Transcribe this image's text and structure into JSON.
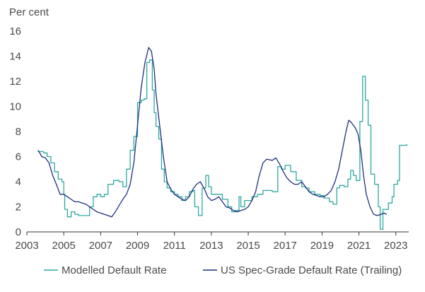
{
  "chart_data": {
    "type": "line",
    "ylabel": "Per cent",
    "ylim": [
      0,
      16
    ],
    "xlim": [
      2003,
      2023.7
    ],
    "yticks": [
      "0",
      "2",
      "4",
      "6",
      "8",
      "10",
      "12",
      "14",
      "16"
    ],
    "xticks": [
      "2003",
      "2005",
      "2007",
      "2009",
      "2011",
      "2013",
      "2015",
      "2017",
      "2019",
      "2021",
      "2023"
    ],
    "grid": false,
    "legend_position": "bottom",
    "series": [
      {
        "name": "Modelled Default Rate",
        "color": "#2ea8a0",
        "step": true,
        "points": [
          [
            2003.6,
            6.4
          ],
          [
            2003.9,
            6.3
          ],
          [
            2004.1,
            6.0
          ],
          [
            2004.3,
            5.5
          ],
          [
            2004.5,
            4.8
          ],
          [
            2004.7,
            4.2
          ],
          [
            2004.9,
            4.0
          ],
          [
            2005.0,
            3.0
          ],
          [
            2005.05,
            1.8
          ],
          [
            2005.2,
            1.2
          ],
          [
            2005.4,
            1.6
          ],
          [
            2005.6,
            1.4
          ],
          [
            2005.8,
            1.3
          ],
          [
            2006.1,
            1.3
          ],
          [
            2006.4,
            2.0
          ],
          [
            2006.6,
            2.8
          ],
          [
            2006.8,
            3.0
          ],
          [
            2007.0,
            2.8
          ],
          [
            2007.2,
            3.0
          ],
          [
            2007.4,
            3.8
          ],
          [
            2007.7,
            4.1
          ],
          [
            2008.0,
            4.0
          ],
          [
            2008.2,
            3.6
          ],
          [
            2008.4,
            5.0
          ],
          [
            2008.6,
            6.5
          ],
          [
            2008.8,
            7.6
          ],
          [
            2009.0,
            10.3
          ],
          [
            2009.2,
            10.5
          ],
          [
            2009.35,
            10.6
          ],
          [
            2009.5,
            13.5
          ],
          [
            2009.65,
            13.7
          ],
          [
            2009.8,
            11.3
          ],
          [
            2009.9,
            9.5
          ],
          [
            2010.0,
            8.4
          ],
          [
            2010.15,
            7.4
          ],
          [
            2010.3,
            5.0
          ],
          [
            2010.45,
            4.0
          ],
          [
            2010.6,
            3.5
          ],
          [
            2010.8,
            3.2
          ],
          [
            2011.0,
            3.0
          ],
          [
            2011.2,
            2.8
          ],
          [
            2011.4,
            2.5
          ],
          [
            2011.6,
            2.8
          ],
          [
            2011.8,
            3.2
          ],
          [
            2012.0,
            3.3
          ],
          [
            2012.1,
            2.0
          ],
          [
            2012.3,
            1.3
          ],
          [
            2012.5,
            3.5
          ],
          [
            2012.7,
            4.5
          ],
          [
            2012.85,
            3.6
          ],
          [
            2013.0,
            3.0
          ],
          [
            2013.3,
            3.0
          ],
          [
            2013.6,
            2.6
          ],
          [
            2013.9,
            2.0
          ],
          [
            2014.1,
            1.6
          ],
          [
            2014.3,
            1.7
          ],
          [
            2014.5,
            2.8
          ],
          [
            2014.6,
            2.0
          ],
          [
            2014.8,
            2.5
          ],
          [
            2015.2,
            2.8
          ],
          [
            2015.5,
            3.0
          ],
          [
            2015.8,
            3.3
          ],
          [
            2016.0,
            3.3
          ],
          [
            2016.3,
            3.2
          ],
          [
            2016.6,
            5.2
          ],
          [
            2016.8,
            5.0
          ],
          [
            2017.0,
            5.3
          ],
          [
            2017.3,
            4.8
          ],
          [
            2017.6,
            4.1
          ],
          [
            2017.9,
            3.6
          ],
          [
            2018.1,
            3.5
          ],
          [
            2018.3,
            3.2
          ],
          [
            2018.6,
            3.0
          ],
          [
            2018.9,
            2.9
          ],
          [
            2019.1,
            2.7
          ],
          [
            2019.4,
            2.4
          ],
          [
            2019.6,
            2.2
          ],
          [
            2019.8,
            3.5
          ],
          [
            2019.95,
            3.7
          ],
          [
            2020.2,
            3.6
          ],
          [
            2020.4,
            4.2
          ],
          [
            2020.55,
            4.9
          ],
          [
            2020.7,
            4.5
          ],
          [
            2020.85,
            4.1
          ],
          [
            2021.05,
            8.8
          ],
          [
            2021.2,
            12.4
          ],
          [
            2021.35,
            10.5
          ],
          [
            2021.5,
            8.5
          ],
          [
            2021.65,
            4.6
          ],
          [
            2021.85,
            3.8
          ],
          [
            2022.05,
            2.0
          ],
          [
            2022.15,
            0.2
          ],
          [
            2022.3,
            1.8
          ],
          [
            2022.6,
            2.3
          ],
          [
            2022.8,
            2.8
          ],
          [
            2022.9,
            3.8
          ],
          [
            2023.1,
            4.1
          ],
          [
            2023.2,
            6.9
          ],
          [
            2023.6,
            7.0
          ]
        ]
      },
      {
        "name": "US Spec-Grade Default Rate (Trailing)",
        "color": "#1f2f80",
        "step": false,
        "points": [
          [
            2003.6,
            6.5
          ],
          [
            2003.7,
            6.3
          ],
          [
            2003.8,
            6.0
          ],
          [
            2004.0,
            5.9
          ],
          [
            2004.2,
            5.5
          ],
          [
            2004.4,
            4.5
          ],
          [
            2004.6,
            3.8
          ],
          [
            2004.8,
            3.0
          ],
          [
            2005.0,
            3.0
          ],
          [
            2005.2,
            2.8
          ],
          [
            2005.4,
            2.6
          ],
          [
            2005.6,
            2.4
          ],
          [
            2005.8,
            2.4
          ],
          [
            2006.0,
            2.3
          ],
          [
            2006.2,
            2.2
          ],
          [
            2006.4,
            2.0
          ],
          [
            2006.6,
            1.8
          ],
          [
            2006.8,
            1.6
          ],
          [
            2007.0,
            1.5
          ],
          [
            2007.2,
            1.4
          ],
          [
            2007.4,
            1.3
          ],
          [
            2007.6,
            1.2
          ],
          [
            2007.8,
            1.6
          ],
          [
            2008.0,
            2.1
          ],
          [
            2008.2,
            2.6
          ],
          [
            2008.4,
            3.0
          ],
          [
            2008.6,
            3.8
          ],
          [
            2008.8,
            5.5
          ],
          [
            2009.0,
            8.5
          ],
          [
            2009.2,
            11.5
          ],
          [
            2009.4,
            13.5
          ],
          [
            2009.6,
            14.7
          ],
          [
            2009.75,
            14.4
          ],
          [
            2009.9,
            13.0
          ],
          [
            2010.0,
            11.0
          ],
          [
            2010.2,
            8.5
          ],
          [
            2010.4,
            6.0
          ],
          [
            2010.6,
            4.0
          ],
          [
            2010.8,
            3.4
          ],
          [
            2011.0,
            3.0
          ],
          [
            2011.2,
            2.8
          ],
          [
            2011.4,
            2.6
          ],
          [
            2011.6,
            2.5
          ],
          [
            2011.8,
            2.8
          ],
          [
            2012.0,
            3.4
          ],
          [
            2012.2,
            3.8
          ],
          [
            2012.4,
            4.0
          ],
          [
            2012.6,
            3.5
          ],
          [
            2012.8,
            2.8
          ],
          [
            2013.0,
            2.5
          ],
          [
            2013.2,
            2.6
          ],
          [
            2013.4,
            2.8
          ],
          [
            2013.6,
            2.4
          ],
          [
            2013.8,
            2.0
          ],
          [
            2014.0,
            1.9
          ],
          [
            2014.2,
            1.7
          ],
          [
            2014.4,
            1.6
          ],
          [
            2014.6,
            1.7
          ],
          [
            2014.8,
            1.8
          ],
          [
            2015.0,
            2.0
          ],
          [
            2015.2,
            2.5
          ],
          [
            2015.4,
            3.2
          ],
          [
            2015.6,
            4.5
          ],
          [
            2015.8,
            5.5
          ],
          [
            2016.0,
            5.8
          ],
          [
            2016.3,
            5.7
          ],
          [
            2016.5,
            5.9
          ],
          [
            2016.7,
            5.4
          ],
          [
            2016.9,
            4.8
          ],
          [
            2017.1,
            4.3
          ],
          [
            2017.3,
            4.0
          ],
          [
            2017.5,
            3.8
          ],
          [
            2017.7,
            3.8
          ],
          [
            2017.9,
            4.0
          ],
          [
            2018.1,
            3.6
          ],
          [
            2018.3,
            3.2
          ],
          [
            2018.5,
            3.0
          ],
          [
            2018.7,
            2.9
          ],
          [
            2018.9,
            2.8
          ],
          [
            2019.1,
            2.8
          ],
          [
            2019.3,
            3.0
          ],
          [
            2019.5,
            3.3
          ],
          [
            2019.7,
            4.0
          ],
          [
            2019.9,
            5.0
          ],
          [
            2020.1,
            6.5
          ],
          [
            2020.3,
            8.0
          ],
          [
            2020.45,
            8.9
          ],
          [
            2020.6,
            8.7
          ],
          [
            2020.8,
            8.3
          ],
          [
            2020.95,
            7.8
          ],
          [
            2021.1,
            6.5
          ],
          [
            2021.25,
            4.5
          ],
          [
            2021.4,
            3.0
          ],
          [
            2021.6,
            2.0
          ],
          [
            2021.8,
            1.4
          ],
          [
            2022.0,
            1.3
          ],
          [
            2022.2,
            1.4
          ],
          [
            2022.35,
            1.5
          ],
          [
            2022.5,
            1.4
          ]
        ]
      }
    ]
  }
}
